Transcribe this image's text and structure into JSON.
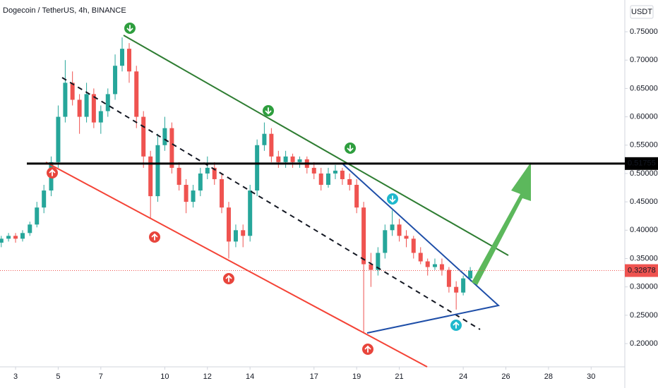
{
  "chart_data": {
    "type": "candlestick",
    "title": "Dogecoin / TetherUS, 4h, BINANCE",
    "currency": "USDT",
    "up_color": "#26a69a",
    "down_color": "#ef5350",
    "xlim": [
      2.27,
      31.58
    ],
    "xticks": [
      3,
      5,
      7,
      10,
      12,
      14,
      17,
      19,
      21,
      24,
      26,
      28,
      30
    ],
    "ylim": [
      0.159,
      0.806
    ],
    "yticks": [
      {
        "value": 0.2,
        "label": "0.20000"
      },
      {
        "value": 0.25,
        "label": "0.25000"
      },
      {
        "value": 0.3,
        "label": "0.30000"
      },
      {
        "value": 0.35,
        "label": "0.35000"
      },
      {
        "value": 0.4,
        "label": "0.40000"
      },
      {
        "value": 0.45,
        "label": "0.45000"
      },
      {
        "value": 0.5,
        "label": "0.50000"
      },
      {
        "value": 0.55,
        "label": "0.55000"
      },
      {
        "value": 0.6,
        "label": "0.60000"
      },
      {
        "value": 0.65,
        "label": "0.65000"
      },
      {
        "value": 0.7,
        "label": "0.70000"
      },
      {
        "value": 0.75,
        "label": "0.75000"
      }
    ],
    "level": 0.51755,
    "last_price": 0.32878,
    "x": [
      2.33,
      2.67,
      3,
      3.33,
      3.67,
      4,
      4.33,
      4.67,
      5,
      5.33,
      5.67,
      6,
      6.33,
      6.67,
      7,
      7.33,
      7.67,
      8,
      8.33,
      8.67,
      9,
      9.33,
      9.67,
      10,
      10.33,
      10.67,
      11,
      11.33,
      11.67,
      12,
      12.33,
      12.67,
      13,
      13.33,
      13.67,
      14,
      14.33,
      14.67,
      15,
      15.33,
      15.67,
      16,
      16.33,
      16.67,
      17,
      17.33,
      17.67,
      18,
      18.33,
      18.67,
      19,
      19.33,
      19.67,
      20,
      20.33,
      20.67,
      21,
      21.33,
      21.67,
      22,
      22.33,
      22.67,
      23,
      23.33,
      23.67,
      24,
      24.33
    ],
    "candles": [
      [
        0.378,
        0.39,
        0.37,
        0.385
      ],
      [
        0.385,
        0.395,
        0.38,
        0.39
      ],
      [
        0.39,
        0.395,
        0.378,
        0.385
      ],
      [
        0.385,
        0.4,
        0.38,
        0.395
      ],
      [
        0.395,
        0.415,
        0.39,
        0.41
      ],
      [
        0.41,
        0.45,
        0.405,
        0.44
      ],
      [
        0.44,
        0.48,
        0.43,
        0.47
      ],
      [
        0.47,
        0.53,
        0.46,
        0.52
      ],
      [
        0.52,
        0.62,
        0.51,
        0.6
      ],
      [
        0.6,
        0.7,
        0.59,
        0.66
      ],
      [
        0.66,
        0.68,
        0.62,
        0.63
      ],
      [
        0.63,
        0.64,
        0.57,
        0.6
      ],
      [
        0.6,
        0.66,
        0.59,
        0.64
      ],
      [
        0.64,
        0.65,
        0.58,
        0.59
      ],
      [
        0.59,
        0.62,
        0.57,
        0.61
      ],
      [
        0.61,
        0.65,
        0.6,
        0.64
      ],
      [
        0.64,
        0.71,
        0.63,
        0.69
      ],
      [
        0.69,
        0.74,
        0.68,
        0.72
      ],
      [
        0.72,
        0.73,
        0.66,
        0.68
      ],
      [
        0.68,
        0.69,
        0.58,
        0.6
      ],
      [
        0.6,
        0.61,
        0.51,
        0.53
      ],
      [
        0.53,
        0.54,
        0.42,
        0.46
      ],
      [
        0.46,
        0.57,
        0.45,
        0.55
      ],
      [
        0.55,
        0.6,
        0.54,
        0.58
      ],
      [
        0.58,
        0.59,
        0.5,
        0.51
      ],
      [
        0.51,
        0.52,
        0.47,
        0.48
      ],
      [
        0.48,
        0.49,
        0.43,
        0.45
      ],
      [
        0.45,
        0.48,
        0.44,
        0.47
      ],
      [
        0.47,
        0.51,
        0.46,
        0.5
      ],
      [
        0.5,
        0.53,
        0.49,
        0.51
      ],
      [
        0.51,
        0.52,
        0.48,
        0.49
      ],
      [
        0.49,
        0.5,
        0.43,
        0.44
      ],
      [
        0.44,
        0.45,
        0.35,
        0.38
      ],
      [
        0.38,
        0.41,
        0.37,
        0.4
      ],
      [
        0.4,
        0.41,
        0.37,
        0.39
      ],
      [
        0.39,
        0.48,
        0.38,
        0.47
      ],
      [
        0.47,
        0.56,
        0.46,
        0.55
      ],
      [
        0.55,
        0.59,
        0.54,
        0.57
      ],
      [
        0.57,
        0.58,
        0.52,
        0.53
      ],
      [
        0.53,
        0.54,
        0.51,
        0.52
      ],
      [
        0.52,
        0.54,
        0.51,
        0.53
      ],
      [
        0.53,
        0.535,
        0.51,
        0.52
      ],
      [
        0.52,
        0.53,
        0.51,
        0.525
      ],
      [
        0.525,
        0.53,
        0.5,
        0.51
      ],
      [
        0.51,
        0.52,
        0.49,
        0.5
      ],
      [
        0.5,
        0.51,
        0.47,
        0.48
      ],
      [
        0.48,
        0.51,
        0.475,
        0.5
      ],
      [
        0.5,
        0.515,
        0.49,
        0.505
      ],
      [
        0.505,
        0.51,
        0.48,
        0.49
      ],
      [
        0.49,
        0.5,
        0.47,
        0.48
      ],
      [
        0.48,
        0.49,
        0.43,
        0.44
      ],
      [
        0.44,
        0.45,
        0.22,
        0.34
      ],
      [
        0.34,
        0.36,
        0.3,
        0.33
      ],
      [
        0.33,
        0.37,
        0.32,
        0.36
      ],
      [
        0.36,
        0.41,
        0.35,
        0.4
      ],
      [
        0.4,
        0.435,
        0.39,
        0.41
      ],
      [
        0.41,
        0.42,
        0.38,
        0.39
      ],
      [
        0.39,
        0.4,
        0.37,
        0.385
      ],
      [
        0.385,
        0.39,
        0.35,
        0.36
      ],
      [
        0.36,
        0.37,
        0.34,
        0.345
      ],
      [
        0.345,
        0.35,
        0.32,
        0.335
      ],
      [
        0.335,
        0.35,
        0.33,
        0.34
      ],
      [
        0.34,
        0.35,
        0.32,
        0.33
      ],
      [
        0.33,
        0.335,
        0.29,
        0.3
      ],
      [
        0.3,
        0.31,
        0.26,
        0.29
      ],
      [
        0.29,
        0.32,
        0.285,
        0.315
      ],
      [
        0.315,
        0.335,
        0.31,
        0.32878
      ]
    ]
  }
}
